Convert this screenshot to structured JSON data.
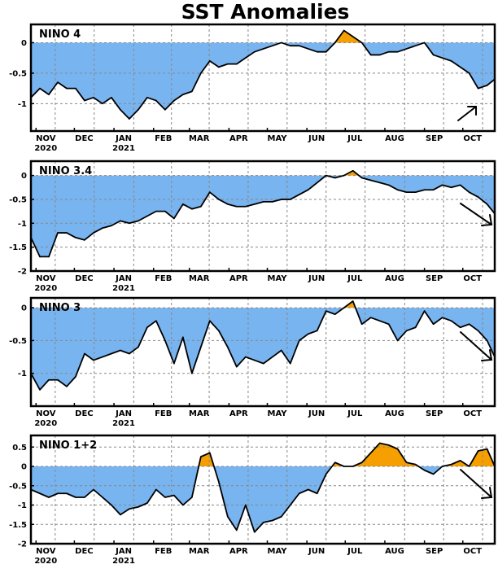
{
  "title": "SST Anomalies",
  "colors": {
    "negative": "#78b4f0",
    "positive": "#f5a000",
    "line": "#000000",
    "grid": "#888888"
  },
  "x_axis": {
    "months": [
      "NOV",
      "DEC",
      "JAN",
      "FEB",
      "MAR",
      "APR",
      "MAY",
      "JUN",
      "JUL",
      "AUG",
      "SEP",
      "OCT"
    ],
    "years": [
      {
        "under": "NOV",
        "label": "2020"
      },
      {
        "under": "JAN",
        "label": "2021"
      }
    ]
  },
  "chart_data": [
    {
      "type": "area",
      "title": "NINO 4",
      "x_start": "2020-10-28",
      "x_end": "2021-10-26",
      "ylim": [
        -1.45,
        0.3
      ],
      "yticks": [
        0,
        -0.5,
        -1
      ],
      "ytick_labels": [
        "0",
        "-0.5",
        "-1"
      ],
      "grid": true,
      "trend_arrow": "up-right",
      "series": [
        {
          "x": [
            "2020-10-28",
            "2020-11-04",
            "2020-11-11",
            "2020-11-18",
            "2020-11-25",
            "2020-12-02",
            "2020-12-09",
            "2020-12-16",
            "2020-12-23",
            "2020-12-30",
            "2021-01-06",
            "2021-01-13",
            "2021-01-20",
            "2021-01-27",
            "2021-02-03",
            "2021-02-10",
            "2021-02-17",
            "2021-02-24",
            "2021-03-03",
            "2021-03-10",
            "2021-03-17",
            "2021-03-24",
            "2021-03-31",
            "2021-04-07",
            "2021-04-14",
            "2021-04-21",
            "2021-04-28",
            "2021-05-05",
            "2021-05-12",
            "2021-05-19",
            "2021-05-26",
            "2021-06-02",
            "2021-06-09",
            "2021-06-16",
            "2021-06-23",
            "2021-06-30",
            "2021-07-07",
            "2021-07-14",
            "2021-07-21",
            "2021-07-28",
            "2021-08-04",
            "2021-08-11",
            "2021-08-18",
            "2021-08-25",
            "2021-09-01",
            "2021-09-08",
            "2021-09-15",
            "2021-09-22",
            "2021-09-29",
            "2021-10-06",
            "2021-10-13",
            "2021-10-20",
            "2021-10-26"
          ],
          "y": [
            -0.9,
            -0.75,
            -0.85,
            -0.65,
            -0.75,
            -0.75,
            -0.95,
            -0.9,
            -1.0,
            -0.9,
            -1.1,
            -1.25,
            -1.1,
            -0.9,
            -0.95,
            -1.1,
            -0.95,
            -0.85,
            -0.8,
            -0.5,
            -0.3,
            -0.4,
            -0.35,
            -0.35,
            -0.25,
            -0.15,
            -0.1,
            -0.05,
            0.0,
            -0.05,
            -0.05,
            -0.1,
            -0.15,
            -0.15,
            0.0,
            0.2,
            0.1,
            0.0,
            -0.2,
            -0.2,
            -0.15,
            -0.15,
            -0.1,
            -0.05,
            0.0,
            -0.2,
            -0.25,
            -0.3,
            -0.4,
            -0.5,
            -0.75,
            -0.7,
            -0.6
          ]
        }
      ]
    },
    {
      "type": "area",
      "title": "NINO 3.4",
      "x_start": "2020-10-28",
      "x_end": "2021-10-26",
      "ylim": [
        -2.0,
        0.3
      ],
      "yticks": [
        0,
        -0.5,
        -1,
        -1.5,
        -2
      ],
      "ytick_labels": [
        "0",
        "-0.5",
        "-1",
        "-1.5",
        "-2"
      ],
      "grid": true,
      "trend_arrow": "down-right",
      "series": [
        {
          "x": [
            "2020-10-28",
            "2020-11-04",
            "2020-11-11",
            "2020-11-18",
            "2020-11-25",
            "2020-12-02",
            "2020-12-09",
            "2020-12-16",
            "2020-12-23",
            "2020-12-30",
            "2021-01-06",
            "2021-01-13",
            "2021-01-20",
            "2021-01-27",
            "2021-02-03",
            "2021-02-10",
            "2021-02-17",
            "2021-02-24",
            "2021-03-03",
            "2021-03-10",
            "2021-03-17",
            "2021-03-24",
            "2021-03-31",
            "2021-04-07",
            "2021-04-14",
            "2021-04-21",
            "2021-04-28",
            "2021-05-05",
            "2021-05-12",
            "2021-05-19",
            "2021-05-26",
            "2021-06-02",
            "2021-06-09",
            "2021-06-16",
            "2021-06-23",
            "2021-06-30",
            "2021-07-07",
            "2021-07-14",
            "2021-07-21",
            "2021-07-28",
            "2021-08-04",
            "2021-08-11",
            "2021-08-18",
            "2021-08-25",
            "2021-09-01",
            "2021-09-08",
            "2021-09-15",
            "2021-09-22",
            "2021-09-29",
            "2021-10-06",
            "2021-10-13",
            "2021-10-20",
            "2021-10-26"
          ],
          "y": [
            -1.3,
            -1.7,
            -1.7,
            -1.2,
            -1.2,
            -1.3,
            -1.35,
            -1.2,
            -1.1,
            -1.05,
            -0.95,
            -1.0,
            -0.95,
            -0.85,
            -0.75,
            -0.75,
            -0.9,
            -0.6,
            -0.7,
            -0.65,
            -0.35,
            -0.5,
            -0.6,
            -0.65,
            -0.65,
            -0.6,
            -0.55,
            -0.55,
            -0.5,
            -0.5,
            -0.4,
            -0.3,
            -0.15,
            0.0,
            -0.05,
            0.0,
            0.1,
            -0.05,
            -0.1,
            -0.15,
            -0.2,
            -0.3,
            -0.35,
            -0.35,
            -0.3,
            -0.3,
            -0.2,
            -0.25,
            -0.2,
            -0.35,
            -0.45,
            -0.6,
            -0.8
          ]
        }
      ]
    },
    {
      "type": "area",
      "title": "NINO 3",
      "x_start": "2020-10-28",
      "x_end": "2021-10-26",
      "ylim": [
        -1.5,
        0.15
      ],
      "yticks": [
        0,
        -0.5,
        -1
      ],
      "ytick_labels": [
        "0",
        "-0.5",
        "-1"
      ],
      "grid": true,
      "trend_arrow": "down-right",
      "series": [
        {
          "x": [
            "2020-10-28",
            "2020-11-04",
            "2020-11-11",
            "2020-11-18",
            "2020-11-25",
            "2020-12-02",
            "2020-12-09",
            "2020-12-16",
            "2020-12-23",
            "2020-12-30",
            "2021-01-06",
            "2021-01-13",
            "2021-01-20",
            "2021-01-27",
            "2021-02-03",
            "2021-02-10",
            "2021-02-17",
            "2021-02-24",
            "2021-03-03",
            "2021-03-10",
            "2021-03-17",
            "2021-03-24",
            "2021-03-31",
            "2021-04-07",
            "2021-04-14",
            "2021-04-21",
            "2021-04-28",
            "2021-05-05",
            "2021-05-12",
            "2021-05-19",
            "2021-05-26",
            "2021-06-02",
            "2021-06-09",
            "2021-06-16",
            "2021-06-23",
            "2021-06-30",
            "2021-07-07",
            "2021-07-14",
            "2021-07-21",
            "2021-07-28",
            "2021-08-04",
            "2021-08-11",
            "2021-08-18",
            "2021-08-25",
            "2021-09-01",
            "2021-09-08",
            "2021-09-15",
            "2021-09-22",
            "2021-09-29",
            "2021-10-06",
            "2021-10-13",
            "2021-10-20",
            "2021-10-26"
          ],
          "y": [
            -1.0,
            -1.25,
            -1.1,
            -1.1,
            -1.2,
            -1.05,
            -0.7,
            -0.8,
            -0.75,
            -0.7,
            -0.65,
            -0.7,
            -0.6,
            -0.3,
            -0.2,
            -0.5,
            -0.85,
            -0.45,
            -1.0,
            -0.6,
            -0.2,
            -0.35,
            -0.6,
            -0.9,
            -0.75,
            -0.8,
            -0.85,
            -0.75,
            -0.65,
            -0.85,
            -0.5,
            -0.4,
            -0.35,
            -0.05,
            -0.1,
            0.0,
            0.1,
            -0.25,
            -0.15,
            -0.2,
            -0.25,
            -0.5,
            -0.35,
            -0.3,
            -0.05,
            -0.25,
            -0.15,
            -0.2,
            -0.3,
            -0.25,
            -0.35,
            -0.5,
            -0.75
          ]
        }
      ]
    },
    {
      "type": "area",
      "title": "NINO 1+2",
      "x_start": "2020-10-28",
      "x_end": "2021-10-26",
      "ylim": [
        -2.0,
        0.8
      ],
      "yticks": [
        0.5,
        0,
        -0.5,
        -1,
        -1.5,
        -2
      ],
      "ytick_labels": [
        "0.5",
        "0",
        "-0.5",
        "-1",
        "-1.5",
        "-2"
      ],
      "grid": true,
      "trend_arrow": "down-right",
      "series": [
        {
          "x": [
            "2020-10-28",
            "2020-11-04",
            "2020-11-11",
            "2020-11-18",
            "2020-11-25",
            "2020-12-02",
            "2020-12-09",
            "2020-12-16",
            "2020-12-23",
            "2020-12-30",
            "2021-01-06",
            "2021-01-13",
            "2021-01-20",
            "2021-01-27",
            "2021-02-03",
            "2021-02-10",
            "2021-02-17",
            "2021-02-24",
            "2021-03-03",
            "2021-03-10",
            "2021-03-17",
            "2021-03-24",
            "2021-03-31",
            "2021-04-07",
            "2021-04-14",
            "2021-04-21",
            "2021-04-28",
            "2021-05-05",
            "2021-05-12",
            "2021-05-19",
            "2021-05-26",
            "2021-06-02",
            "2021-06-09",
            "2021-06-16",
            "2021-06-23",
            "2021-06-30",
            "2021-07-07",
            "2021-07-14",
            "2021-07-21",
            "2021-07-28",
            "2021-08-04",
            "2021-08-11",
            "2021-08-18",
            "2021-08-25",
            "2021-09-01",
            "2021-09-08",
            "2021-09-15",
            "2021-09-22",
            "2021-09-29",
            "2021-10-06",
            "2021-10-13",
            "2021-10-20",
            "2021-10-26"
          ],
          "y": [
            -0.6,
            -0.7,
            -0.8,
            -0.7,
            -0.7,
            -0.8,
            -0.8,
            -0.6,
            -0.8,
            -1.0,
            -1.25,
            -1.1,
            -1.05,
            -0.95,
            -0.6,
            -0.8,
            -0.75,
            -1.0,
            -0.8,
            0.25,
            0.35,
            -0.4,
            -1.3,
            -1.65,
            -1.0,
            -1.7,
            -1.45,
            -1.4,
            -1.3,
            -1.0,
            -0.7,
            -0.6,
            -0.7,
            -0.2,
            0.1,
            0.0,
            0.0,
            0.1,
            0.35,
            0.6,
            0.55,
            0.45,
            0.1,
            0.05,
            -0.1,
            -0.2,
            0.0,
            0.05,
            0.15,
            0.0,
            0.4,
            0.45,
            0.0
          ]
        }
      ]
    }
  ]
}
